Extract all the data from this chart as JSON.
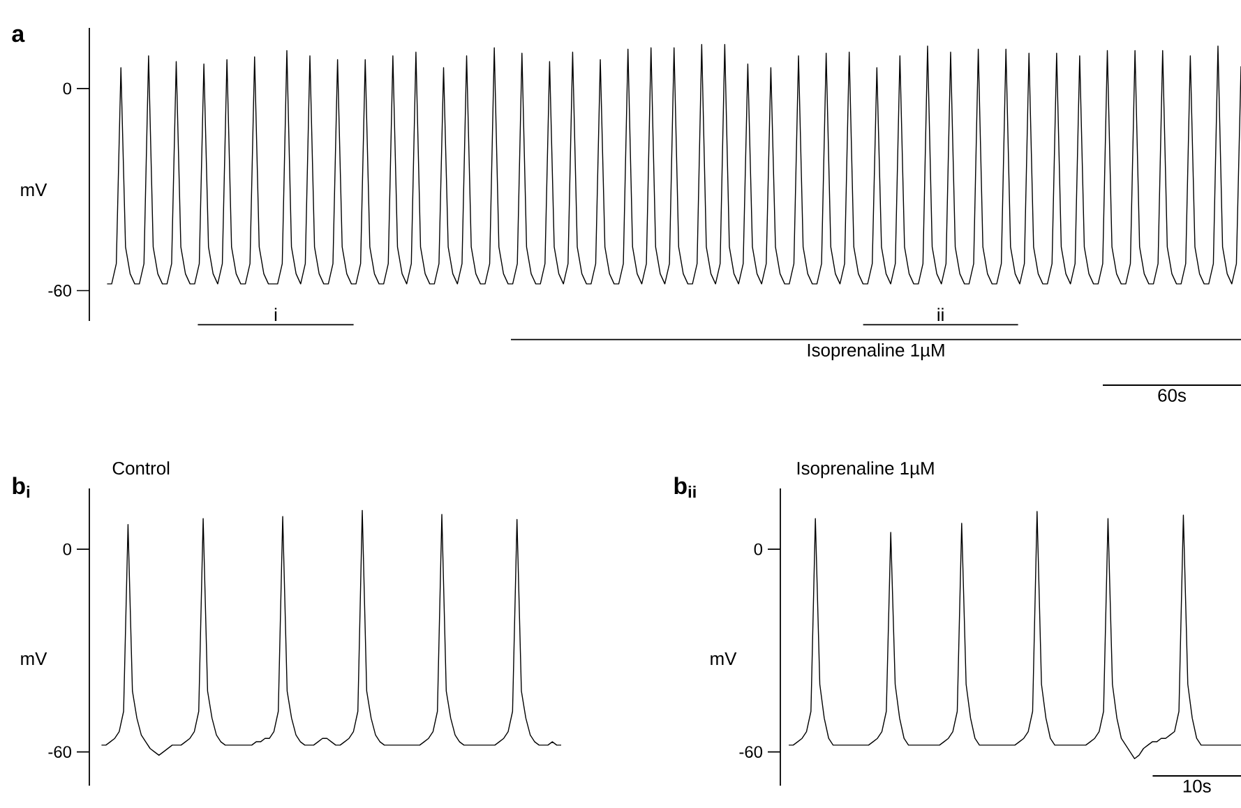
{
  "chart_data": [
    {
      "type": "line",
      "title": "a",
      "ylabel": "mV",
      "color": "#000000",
      "ylim": [
        -69,
        18
      ],
      "yticks": [
        -60,
        0
      ],
      "tick_labels": "y",
      "annotations": [
        "i",
        "Isoprenaline 1µM",
        "ii",
        "60s"
      ],
      "categories": [
        null,
        null,
        null,
        null,
        null,
        null,
        null,
        null,
        null,
        null,
        null,
        null,
        null,
        null,
        null,
        null,
        null,
        null,
        null,
        null,
        null,
        null,
        null,
        null,
        null,
        null,
        null,
        null,
        null,
        null,
        null,
        null,
        null,
        null,
        null,
        null,
        null,
        null,
        null,
        null,
        null,
        null,
        null,
        null,
        null,
        null,
        null,
        null,
        null,
        null,
        null,
        null,
        null,
        null,
        null,
        null,
        null,
        null,
        null,
        null,
        null,
        null,
        null,
        null,
        null,
        null,
        null,
        null,
        null,
        null,
        null,
        null,
        null,
        null,
        null,
        null,
        null,
        null,
        null,
        null,
        null,
        null,
        null,
        null,
        null,
        null,
        null,
        null,
        null,
        null,
        null,
        null,
        null,
        null,
        null,
        null,
        null,
        null,
        null,
        null,
        null,
        null,
        null,
        null,
        null,
        null,
        null,
        null,
        null,
        null,
        null,
        null,
        null,
        null,
        null,
        null,
        null,
        null,
        null,
        null,
        null,
        null,
        null,
        null,
        null,
        null,
        null,
        null,
        null,
        null,
        null,
        null,
        null,
        null,
        null,
        null,
        null,
        null,
        null,
        null,
        null,
        null,
        null,
        null,
        null,
        null,
        null,
        null,
        null,
        null,
        null,
        null,
        null,
        null,
        null,
        null,
        null,
        null,
        null,
        null,
        null,
        null,
        null,
        null,
        null,
        null,
        null,
        null,
        null,
        null,
        null,
        null,
        null,
        null,
        null,
        null,
        null,
        null,
        null,
        null,
        null,
        null,
        null,
        null,
        null,
        null,
        null,
        null,
        null,
        null,
        null,
        null,
        null,
        null,
        null,
        null,
        null,
        null,
        null,
        null,
        null,
        null,
        null,
        null,
        null,
        null,
        null,
        null,
        null,
        null,
        null,
        null,
        null,
        null,
        null,
        null,
        null,
        null,
        null,
        null,
        null,
        null,
        null,
        null,
        null,
        null,
        null,
        null,
        null,
        null,
        null,
        null,
        null,
        null,
        null,
        null,
        null,
        null,
        null,
        null,
        null,
        null,
        null,
        null,
        null,
        null,
        null
      ],
      "values": [
        -58,
        -58,
        -52,
        6.2,
        -47,
        -55,
        -58,
        -58,
        -52,
        9.7,
        -47,
        -55,
        -58,
        -58,
        -52,
        8.0,
        -47,
        -55,
        -58,
        -58,
        -52,
        7.3,
        -47,
        -55,
        -58,
        -52,
        8.6,
        -47,
        -55,
        -58,
        -58,
        -52,
        9.4,
        -47,
        -55,
        -58,
        -58,
        -58,
        -52,
        11.3,
        -47,
        -55,
        -58,
        -52,
        9.7,
        -47,
        -55,
        -58,
        -58,
        -52,
        8.6,
        -47,
        -55,
        -58,
        -58,
        -52,
        8.6,
        -47,
        -55,
        -58,
        -58,
        -52,
        9.7,
        -47,
        -55,
        -58,
        -52,
        10.8,
        -47,
        -55,
        -58,
        -58,
        -52,
        6.2,
        -47,
        -55,
        -58,
        -52,
        9.7,
        -47,
        -55,
        -58,
        -58,
        -52,
        12.1,
        -47,
        -55,
        -58,
        -58,
        -52,
        10.5,
        -47,
        -55,
        -58,
        -58,
        -52,
        8.0,
        -47,
        -55,
        -58,
        -52,
        10.8,
        -47,
        -55,
        -58,
        -58,
        -52,
        8.6,
        -47,
        -55,
        -58,
        -58,
        -52,
        11.7,
        -47,
        -55,
        -58,
        -52,
        12.1,
        -47,
        -55,
        -58,
        -52,
        12.1,
        -47,
        -55,
        -58,
        -58,
        -52,
        13.1,
        -47,
        -55,
        -58,
        -52,
        13.1,
        -47,
        -55,
        -58,
        -52,
        7.3,
        -47,
        -55,
        -58,
        -52,
        6.2,
        -47,
        -55,
        -58,
        -58,
        -52,
        9.7,
        -47,
        -55,
        -58,
        -58,
        -52,
        10.5,
        -47,
        -55,
        -58,
        -52,
        10.8,
        -47,
        -55,
        -58,
        -58,
        -52,
        6.2,
        -47,
        -55,
        -58,
        -52,
        9.7,
        -47,
        -55,
        -58,
        -58,
        -52,
        12.6,
        -47,
        -55,
        -58,
        -52,
        10.8,
        -47,
        -55,
        -58,
        -58,
        -52,
        11.7,
        -47,
        -55,
        -58,
        -58,
        -52,
        11.7,
        -47,
        -55,
        -58,
        -52,
        10.5,
        -47,
        -55,
        -58,
        -58,
        -52,
        10.5,
        -47,
        -55,
        -58,
        -52,
        9.7,
        -47,
        -55,
        -58,
        -58,
        -52,
        11.3,
        -47,
        -55,
        -58,
        -58,
        -52,
        11.3,
        -47,
        -55,
        -58,
        -58,
        -52,
        11.3,
        -47,
        -55,
        -58,
        -58,
        -52,
        9.7,
        -47,
        -55,
        -58,
        -58,
        -52,
        12.6,
        -47,
        -55,
        -58,
        -52,
        6.6
      ]
    },
    {
      "type": "line",
      "title": "b$_{i}$",
      "subtitle": "Control",
      "ylabel": "mV",
      "color": "#000000",
      "ylim": [
        -70,
        18
      ],
      "yticks": [
        -60,
        0
      ],
      "tick_labels": "y",
      "categories": [
        null,
        null,
        null,
        null,
        null,
        null,
        null,
        null,
        null,
        null,
        null,
        null,
        null,
        null,
        null,
        null,
        null,
        null,
        null,
        null,
        null,
        null,
        null,
        null,
        null,
        null,
        null,
        null,
        null,
        null,
        null,
        null,
        null,
        null,
        null,
        null,
        null,
        null,
        null,
        null,
        null,
        null,
        null,
        null,
        null,
        null,
        null,
        null,
        null,
        null,
        null,
        null,
        null,
        null,
        null,
        null,
        null,
        null,
        null,
        null,
        null,
        null,
        null,
        null,
        null,
        null,
        null,
        null,
        null,
        null,
        null,
        null,
        null,
        null,
        null,
        null,
        null,
        null,
        null,
        null,
        null,
        null,
        null,
        null,
        null,
        null,
        null,
        null,
        null,
        null,
        null,
        null,
        null,
        null,
        null,
        null,
        null,
        null,
        null,
        null,
        null,
        null,
        null,
        null,
        null
      ],
      "values": [
        -58,
        -58,
        -57,
        -56,
        -54,
        -48,
        7.3,
        -42,
        -50,
        -55,
        -57,
        -59,
        -60,
        -61,
        -60,
        -59,
        -58,
        -58,
        -58,
        -57,
        -56,
        -54,
        -48,
        9.1,
        -42,
        -50,
        -55,
        -57,
        -58,
        -58,
        -58,
        -58,
        -58,
        -58,
        -58,
        -57,
        -57,
        -56,
        -56,
        -54,
        -48,
        9.7,
        -42,
        -50,
        -55,
        -57,
        -58,
        -58,
        -58,
        -57,
        -56,
        -56,
        -57,
        -58,
        -58,
        -57,
        -56,
        -54,
        -48,
        11.5,
        -42,
        -50,
        -55,
        -57,
        -58,
        -58,
        -58,
        -58,
        -58,
        -58,
        -58,
        -58,
        -58,
        -57,
        -56,
        -54,
        -48,
        10.3,
        -42,
        -50,
        -55,
        -57,
        -58,
        -58,
        -58,
        -58,
        -58,
        -58,
        -58,
        -58,
        -57,
        -56,
        -54,
        -48,
        8.8,
        -42,
        -50,
        -55,
        -57,
        -58,
        -58,
        -58,
        -57,
        -58,
        -58
      ]
    },
    {
      "type": "line",
      "title": "b$_{ii}$",
      "subtitle": "Isoprenaline 1µM",
      "ylabel": "mV",
      "color": "#000000",
      "ylim": [
        -70,
        18
      ],
      "yticks": [
        -60,
        0
      ],
      "tick_labels": "y",
      "annotations": [
        "10s"
      ],
      "categories": [
        null,
        null,
        null,
        null,
        null,
        null,
        null,
        null,
        null,
        null,
        null,
        null,
        null,
        null,
        null,
        null,
        null,
        null,
        null,
        null,
        null,
        null,
        null,
        null,
        null,
        null,
        null,
        null,
        null,
        null,
        null,
        null,
        null,
        null,
        null,
        null,
        null,
        null,
        null,
        null,
        null,
        null,
        null,
        null,
        null,
        null,
        null,
        null,
        null,
        null,
        null,
        null,
        null,
        null,
        null,
        null,
        null,
        null,
        null,
        null,
        null,
        null,
        null,
        null,
        null,
        null,
        null,
        null,
        null,
        null,
        null,
        null,
        null,
        null,
        null,
        null,
        null,
        null,
        null,
        null,
        null,
        null,
        null,
        null,
        null,
        null,
        null,
        null,
        null,
        null,
        null,
        null,
        null,
        null,
        null,
        null,
        null,
        null,
        null,
        null,
        null,
        null,
        null
      ],
      "values": [
        -58,
        -58,
        -57,
        -56,
        -54,
        -48,
        9.1,
        -40,
        -50,
        -56,
        -58,
        -58,
        -58,
        -58,
        -58,
        -58,
        -58,
        -58,
        -58,
        -57,
        -56,
        -54,
        -48,
        5.0,
        -40,
        -50,
        -56,
        -58,
        -58,
        -58,
        -58,
        -58,
        -58,
        -58,
        -58,
        -57,
        -56,
        -54,
        -48,
        7.7,
        -40,
        -50,
        -56,
        -58,
        -58,
        -58,
        -58,
        -58,
        -58,
        -58,
        -58,
        -58,
        -57,
        -56,
        -54,
        -48,
        11.2,
        -40,
        -50,
        -56,
        -58,
        -58,
        -58,
        -58,
        -58,
        -58,
        -58,
        -58,
        -57,
        -56,
        -54,
        -48,
        9.1,
        -40,
        -50,
        -56,
        -58,
        -60,
        -62,
        -61,
        -59,
        -58,
        -57,
        -57,
        -56,
        -56,
        -55,
        -54,
        -48,
        10.1,
        -40,
        -50,
        -56,
        -58,
        -58,
        -58,
        -58,
        -58,
        -58,
        -58,
        -58,
        -58,
        -58
      ]
    }
  ]
}
